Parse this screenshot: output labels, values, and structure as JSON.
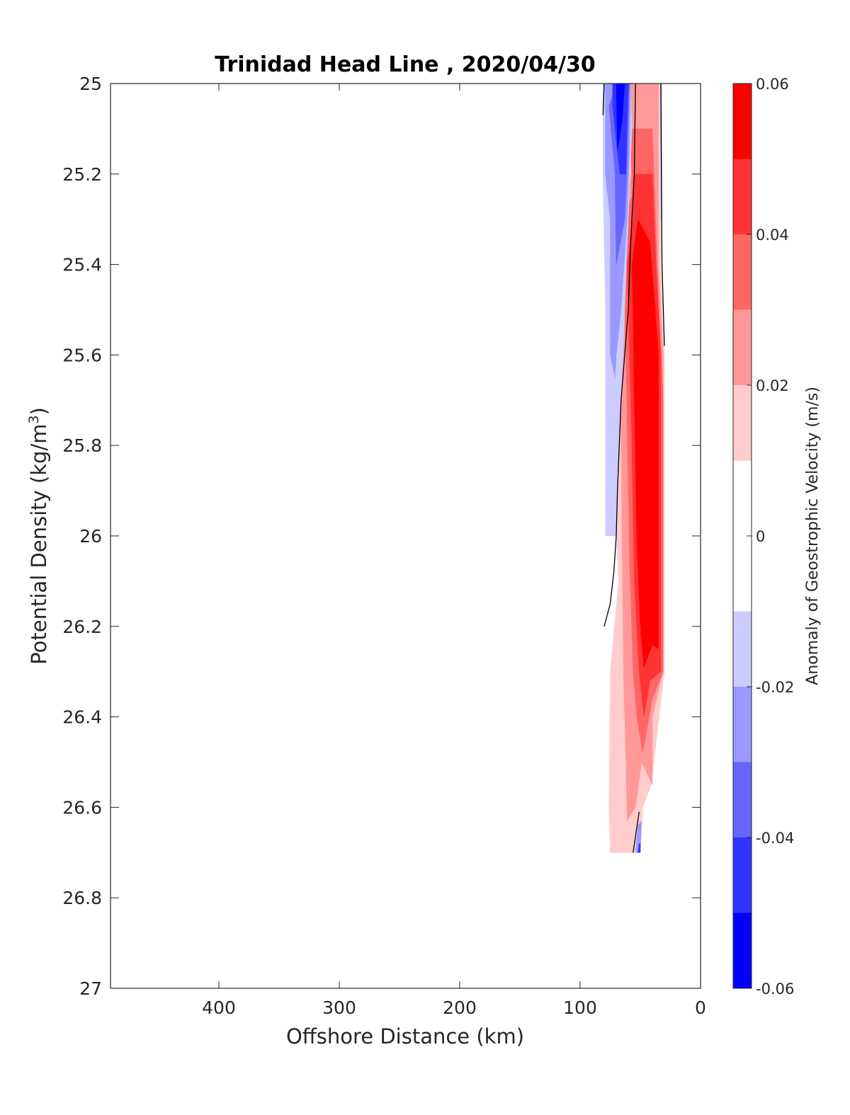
{
  "chart_data": {
    "type": "heatmap",
    "title": "Trinidad Head Line , 2020/04/30",
    "xlabel": "Offshore Distance (km)",
    "ylabel": "Potential Density (kg/m",
    "ylabel_sup": "3",
    "ylabel_end": ")",
    "xlim": [
      490,
      0
    ],
    "ylim": [
      27,
      25
    ],
    "x_reversed": true,
    "y_reversed": true,
    "xticks": [
      400,
      300,
      200,
      100,
      0
    ],
    "xtick_labels": [
      "400",
      "300",
      "200",
      "100",
      "0"
    ],
    "yticks": [
      25,
      25.2,
      25.4,
      25.6,
      25.8,
      26,
      26.2,
      26.4,
      26.6,
      26.8,
      27
    ],
    "ytick_labels": [
      "25",
      "25.2",
      "25.4",
      "25.6",
      "25.8",
      "26",
      "26.2",
      "26.4",
      "26.6",
      "26.8",
      "27"
    ],
    "colorbar": {
      "label": "Anomaly of Geostrophic Velocity (m/s)",
      "range": [
        -0.06,
        0.06
      ],
      "ticks": [
        0.06,
        0.04,
        0.02,
        0,
        -0.02,
        -0.04,
        -0.06
      ],
      "tick_labels": [
        "0.06",
        "0.04",
        "0.02",
        "0",
        "-0.02",
        "-0.04",
        "-0.06"
      ],
      "levels": [
        {
          "from": 0.05,
          "to": 0.06,
          "color": "#ff0000"
        },
        {
          "from": 0.04,
          "to": 0.05,
          "color": "#ff3333"
        },
        {
          "from": 0.03,
          "to": 0.04,
          "color": "#ff6666"
        },
        {
          "from": 0.02,
          "to": 0.03,
          "color": "#ff9999"
        },
        {
          "from": 0.01,
          "to": 0.02,
          "color": "#ffcccc"
        },
        {
          "from": 0.0,
          "to": 0.01,
          "color": "#ffffff"
        },
        {
          "from": -0.01,
          "to": 0.0,
          "color": "#ffffff"
        },
        {
          "from": -0.02,
          "to": -0.01,
          "color": "#ccccff"
        },
        {
          "from": -0.03,
          "to": -0.02,
          "color": "#9999ff"
        },
        {
          "from": -0.04,
          "to": -0.03,
          "color": "#6666ff"
        },
        {
          "from": -0.05,
          "to": -0.04,
          "color": "#3333ff"
        },
        {
          "from": -0.06,
          "to": -0.05,
          "color": "#0000ff"
        }
      ]
    },
    "contour_regions": [
      {
        "level": 0.015,
        "color": "#ffcccc",
        "points": [
          [
            62,
            25.0
          ],
          [
            33,
            25.0
          ],
          [
            33,
            25.4
          ],
          [
            30,
            25.6
          ],
          [
            30,
            26.3
          ],
          [
            41,
            26.55
          ],
          [
            48,
            26.6
          ],
          [
            50,
            26.7
          ],
          [
            75,
            26.7
          ],
          [
            76,
            26.6
          ],
          [
            75,
            26.3
          ],
          [
            68,
            26.1
          ],
          [
            70,
            26.0
          ],
          [
            71,
            25.9
          ],
          [
            72,
            25.6
          ],
          [
            74,
            25.5
          ],
          [
            76,
            25.4
          ],
          [
            78,
            25.3
          ],
          [
            79,
            25.2
          ],
          [
            56,
            25.1
          ]
        ]
      },
      {
        "level": 0.025,
        "color": "#ff9999",
        "points": [
          [
            60,
            25.0
          ],
          [
            35,
            25.0
          ],
          [
            35,
            25.4
          ],
          [
            31,
            25.6
          ],
          [
            31,
            26.3
          ],
          [
            40,
            26.4
          ],
          [
            40,
            26.55
          ],
          [
            49,
            26.5
          ],
          [
            54,
            26.6
          ],
          [
            61,
            26.63
          ],
          [
            62,
            26.5
          ],
          [
            64,
            26.3
          ],
          [
            65,
            26.05
          ],
          [
            66,
            25.8
          ],
          [
            67,
            25.6
          ],
          [
            69,
            25.4
          ],
          [
            71,
            25.3
          ],
          [
            57,
            25.2
          ]
        ]
      },
      {
        "level": 0.035,
        "color": "#ff6666",
        "points": [
          [
            58,
            25.1
          ],
          [
            40,
            25.1
          ],
          [
            36,
            25.4
          ],
          [
            31,
            25.7
          ],
          [
            31,
            26.3
          ],
          [
            40,
            26.36
          ],
          [
            48,
            26.48
          ],
          [
            53,
            26.4
          ],
          [
            56,
            26.3
          ],
          [
            59,
            26.05
          ],
          [
            62,
            25.6
          ],
          [
            64,
            25.4
          ],
          [
            66,
            25.3
          ],
          [
            57,
            25.25
          ]
        ]
      },
      {
        "level": 0.045,
        "color": "#ff3333",
        "points": [
          [
            55,
            25.2
          ],
          [
            40,
            25.2
          ],
          [
            37,
            25.4
          ],
          [
            33,
            25.6
          ],
          [
            33,
            26.3
          ],
          [
            42,
            26.32
          ],
          [
            47,
            26.4
          ],
          [
            51,
            26.3
          ],
          [
            55,
            26.1
          ],
          [
            57,
            25.8
          ],
          [
            59,
            25.6
          ],
          [
            61,
            25.4
          ],
          [
            56,
            25.3
          ]
        ]
      },
      {
        "level": 0.055,
        "color": "#ff0000",
        "points": [
          [
            52,
            25.3
          ],
          [
            42,
            25.35
          ],
          [
            39,
            25.45
          ],
          [
            35,
            25.6
          ],
          [
            35,
            26.25
          ],
          [
            40,
            26.24
          ],
          [
            47,
            26.29
          ],
          [
            50,
            26.2
          ],
          [
            53,
            26.0
          ],
          [
            55,
            25.7
          ],
          [
            56,
            25.5
          ],
          [
            57,
            25.4
          ]
        ]
      },
      {
        "level": -0.015,
        "color": "#ccccff",
        "points": [
          [
            70,
            25.0
          ],
          [
            58,
            25.0
          ],
          [
            57,
            25.1
          ],
          [
            60,
            25.3
          ],
          [
            63,
            25.5
          ],
          [
            66,
            25.7
          ],
          [
            69,
            25.9
          ],
          [
            70,
            26.0
          ],
          [
            79,
            26.0
          ],
          [
            79,
            25.5
          ],
          [
            81,
            25.2
          ],
          [
            81,
            25.0
          ]
        ]
      },
      {
        "level": -0.025,
        "color": "#9999ff",
        "points": [
          [
            72,
            25.0
          ],
          [
            58,
            25.0
          ],
          [
            59,
            25.15
          ],
          [
            61,
            25.3
          ],
          [
            66,
            25.5
          ],
          [
            70,
            25.6
          ],
          [
            71,
            25.65
          ],
          [
            75,
            25.6
          ],
          [
            75,
            25.3
          ],
          [
            79,
            25.2
          ],
          [
            79,
            25.0
          ]
        ]
      },
      {
        "level": -0.035,
        "color": "#6666ff",
        "points": [
          [
            70,
            25.0
          ],
          [
            59,
            25.0
          ],
          [
            61,
            25.2
          ],
          [
            63,
            25.3
          ],
          [
            70,
            25.4
          ],
          [
            71,
            25.2
          ],
          [
            76,
            25.05
          ]
        ]
      },
      {
        "level": -0.045,
        "color": "#3333ff",
        "points": [
          [
            73,
            25.0
          ],
          [
            60,
            25.0
          ],
          [
            61,
            25.1
          ],
          [
            62,
            25.2
          ],
          [
            67,
            25.2
          ],
          [
            73,
            25.05
          ]
        ]
      },
      {
        "level": -0.055,
        "color": "#0000ff",
        "points": [
          [
            70,
            25.0
          ],
          [
            63,
            25.0
          ],
          [
            65,
            25.08
          ],
          [
            69,
            25.15
          ]
        ]
      },
      {
        "level": -0.015,
        "color": "#ccccff",
        "points": [
          [
            33,
            25.0
          ],
          [
            32,
            25.0
          ],
          [
            32,
            25.3
          ],
          [
            33,
            25.3
          ]
        ]
      },
      {
        "level": -0.025,
        "color": "#9999ff",
        "points": [
          [
            49,
            26.63
          ],
          [
            50,
            26.7
          ],
          [
            54,
            26.7
          ],
          [
            52,
            26.64
          ]
        ]
      },
      {
        "level": -0.045,
        "color": "#3333ff",
        "points": [
          [
            50,
            26.68
          ],
          [
            50,
            26.7
          ],
          [
            52,
            26.7
          ],
          [
            51,
            26.68
          ]
        ]
      },
      {
        "level": 0.015,
        "color": "#ffcccc",
        "points": [
          [
            71,
            26.63
          ],
          [
            68,
            26.7
          ],
          [
            72,
            26.7
          ]
        ]
      }
    ],
    "zero_contours": [
      [
        [
          80,
          25.0
        ],
        [
          81,
          25.07
        ]
      ],
      [
        [
          54,
          25.0
        ],
        [
          55,
          25.2
        ],
        [
          58,
          25.35
        ],
        [
          60,
          25.5
        ],
        [
          63,
          25.6
        ],
        [
          66,
          25.7
        ],
        [
          69,
          25.9
        ],
        [
          70,
          26.0
        ],
        [
          72,
          26.08
        ],
        [
          75,
          26.15
        ],
        [
          80,
          26.2
        ]
      ],
      [
        [
          33,
          25.0
        ],
        [
          32,
          25.4
        ],
        [
          30,
          25.58
        ]
      ],
      [
        [
          51,
          26.61
        ],
        [
          56,
          26.7
        ]
      ]
    ]
  }
}
